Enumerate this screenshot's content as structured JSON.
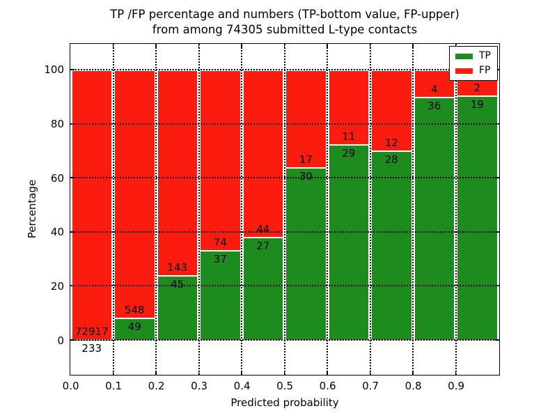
{
  "figure": {
    "title_line1": "TP /FP percentage and numbers (TP-bottom value, FP-upper)",
    "title_line2": "from among 74305 submitted L-type contacts"
  },
  "chart_data": {
    "type": "bar",
    "subtype": "stacked-percentage-histogram",
    "title": "TP /FP percentage and numbers (TP-bottom value, FP-upper) from among 74305 submitted L-type contacts",
    "xlabel": "Predicted probability",
    "ylabel": "Percentage",
    "total_contacts": 74305,
    "bins": [
      "0.0-0.1",
      "0.1-0.2",
      "0.2-0.3",
      "0.3-0.4",
      "0.4-0.5",
      "0.5-0.6",
      "0.6-0.7",
      "0.7-0.8",
      "0.8-0.9",
      "0.9-1.0"
    ],
    "x_tick_labels": [
      "0.0",
      "0.1",
      "0.2",
      "0.3",
      "0.4",
      "0.5",
      "0.6",
      "0.7",
      "0.8",
      "0.9"
    ],
    "y_ticks": [
      0,
      20,
      40,
      60,
      80,
      100
    ],
    "xlim": [
      0.0,
      1.0
    ],
    "ylim_display": [
      -12.6,
      109.5
    ],
    "grid": "dotted black lines at every x and y tick, drawn above bars",
    "series": [
      {
        "name": "TP",
        "color": "#1e8b1e",
        "counts": [
          233,
          49,
          45,
          37,
          27,
          30,
          29,
          28,
          36,
          19
        ]
      },
      {
        "name": "FP",
        "color": "#fb1c10",
        "counts": [
          72917,
          548,
          143,
          74,
          44,
          17,
          11,
          12,
          4,
          2
        ]
      }
    ],
    "tp_percent_by_bin": [
      0.32,
      8.21,
      23.94,
      33.33,
      38.03,
      63.83,
      72.5,
      70.0,
      90.0,
      90.48
    ],
    "legend": {
      "position": "upper right",
      "entries": [
        {
          "label": "TP",
          "color": "#1e8b1e"
        },
        {
          "label": "FP",
          "color": "#fb1c10"
        }
      ]
    }
  }
}
